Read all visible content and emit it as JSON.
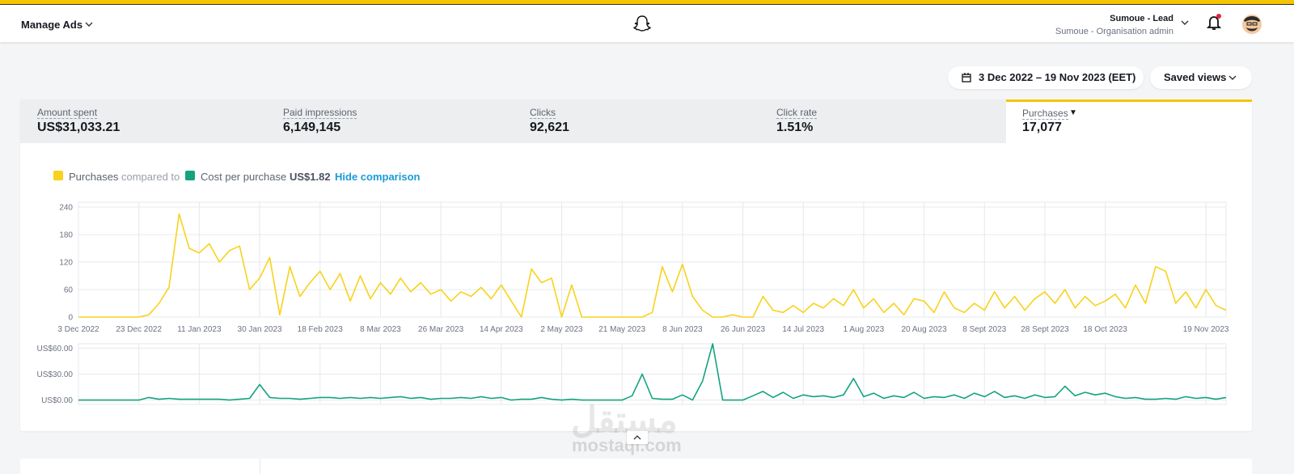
{
  "header": {
    "title": "Manage Ads",
    "user_name": "Sumoue - Lead",
    "user_role": "Sumoue - Organisation admin"
  },
  "toolbar": {
    "date_range": "3 Dec 2022 – 19 Nov 2023 (EET)",
    "saved_views": "Saved views"
  },
  "metrics": [
    {
      "label": "Amount spent",
      "value": "US$31,033.21"
    },
    {
      "label": "Paid impressions",
      "value": "6,149,145"
    },
    {
      "label": "Clicks",
      "value": "92,621"
    },
    {
      "label": "Click rate",
      "value": "1.51%"
    },
    {
      "label": "Purchases",
      "value": "17,077"
    }
  ],
  "legend": {
    "compared_to": "compared to",
    "comparison_value": "US$1.82",
    "hide": "Hide comparison"
  },
  "watermark": {
    "arabic": "مستقل",
    "latin": "mostaql.com"
  },
  "chart_data": [
    {
      "type": "line",
      "grid": true,
      "categories": [
        "3 Dec 2022",
        null,
        null,
        null,
        null,
        null,
        "23 Dec 2022",
        null,
        null,
        null,
        null,
        null,
        "11 Jan 2023",
        null,
        null,
        null,
        null,
        null,
        "30 Jan 2023",
        null,
        null,
        null,
        null,
        null,
        "18 Feb 2023",
        null,
        null,
        null,
        null,
        null,
        "8 Mar 2023",
        null,
        null,
        null,
        null,
        null,
        "26 Mar 2023",
        null,
        null,
        null,
        null,
        null,
        "14 Apr 2023",
        null,
        null,
        null,
        null,
        null,
        "2 May 2023",
        null,
        null,
        null,
        null,
        null,
        "21 May 2023",
        null,
        null,
        null,
        null,
        null,
        "8 Jun 2023",
        null,
        null,
        null,
        null,
        null,
        "26 Jun 2023",
        null,
        null,
        null,
        null,
        null,
        "14 Jul 2023",
        null,
        null,
        null,
        null,
        null,
        "1 Aug 2023",
        null,
        null,
        null,
        null,
        null,
        "20 Aug 2023",
        null,
        null,
        null,
        null,
        null,
        "8 Sept 2023",
        null,
        null,
        null,
        null,
        null,
        "28 Sept 2023",
        null,
        null,
        null,
        null,
        null,
        "18 Oct 2023",
        null,
        null,
        null,
        null,
        null,
        null,
        null,
        null,
        null,
        "19 Nov 2023",
        null,
        null
      ],
      "series": [
        {
          "name": "Purchases",
          "color": "#f8d21c",
          "values": [
            0,
            0,
            0,
            0,
            0,
            0,
            0,
            5,
            30,
            65,
            225,
            150,
            140,
            160,
            120,
            145,
            155,
            60,
            85,
            130,
            5,
            110,
            45,
            75,
            100,
            60,
            95,
            35,
            90,
            40,
            75,
            50,
            85,
            55,
            75,
            50,
            60,
            35,
            55,
            45,
            65,
            40,
            70,
            35,
            0,
            105,
            75,
            85,
            0,
            70,
            0,
            0,
            0,
            0,
            0,
            0,
            0,
            10,
            110,
            55,
            115,
            45,
            15,
            0,
            0,
            5,
            0,
            0,
            45,
            15,
            10,
            25,
            10,
            30,
            20,
            40,
            25,
            60,
            20,
            40,
            10,
            30,
            5,
            40,
            35,
            10,
            55,
            20,
            10,
            30,
            15,
            55,
            20,
            45,
            15,
            40,
            55,
            30,
            60,
            20,
            45,
            25,
            35,
            50,
            20,
            70,
            30,
            110,
            100,
            30,
            55,
            20,
            60,
            25,
            15
          ]
        }
      ],
      "ylim": [
        0,
        240
      ],
      "yticks": [
        0,
        60,
        120,
        180,
        240
      ]
    },
    {
      "type": "line",
      "grid": true,
      "series": [
        {
          "name": "Cost per purchase",
          "color": "#13a37f",
          "values": [
            0,
            0,
            0,
            0,
            0,
            0,
            0,
            3,
            1,
            2,
            1,
            1,
            1,
            1,
            1,
            0,
            1,
            2,
            18,
            3,
            2,
            2,
            1,
            2,
            3,
            3,
            2,
            3,
            2,
            3,
            2,
            3,
            4,
            2,
            3,
            1,
            2,
            2,
            3,
            2,
            4,
            2,
            3,
            0,
            1,
            1,
            3,
            1,
            0,
            1,
            0,
            0,
            0,
            0,
            0,
            5,
            30,
            2,
            1,
            1,
            6,
            0,
            22,
            65,
            0,
            0,
            0,
            5,
            10,
            3,
            9,
            2,
            6,
            4,
            5,
            3,
            6,
            25,
            4,
            8,
            2,
            5,
            3,
            9,
            2,
            4,
            3,
            6,
            2,
            8,
            4,
            10,
            3,
            5,
            2,
            6,
            3,
            4,
            16,
            5,
            9,
            6,
            8,
            4,
            2,
            3,
            1,
            1,
            2,
            1,
            4,
            2,
            3,
            1,
            3
          ]
        }
      ],
      "ylim": [
        -5,
        65
      ],
      "yticks": [
        {
          "value": 0,
          "label": "US$0.00"
        },
        {
          "value": 30,
          "label": "US$30.00"
        },
        {
          "value": 60,
          "label": "US$60.00"
        }
      ]
    }
  ]
}
